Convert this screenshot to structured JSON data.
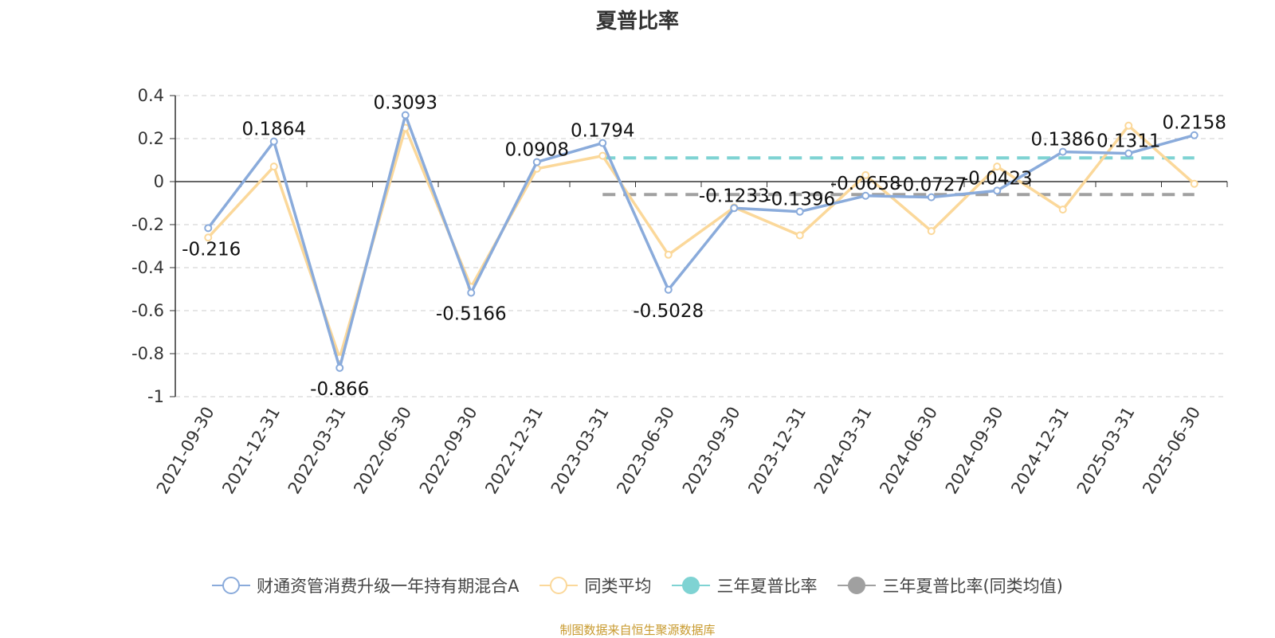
{
  "chart_data": {
    "type": "line",
    "title": "夏普比率",
    "categories": [
      "2021-09-30",
      "2021-12-31",
      "2022-03-31",
      "2022-06-30",
      "2022-09-30",
      "2022-12-31",
      "2023-03-31",
      "2023-06-30",
      "2023-09-30",
      "2023-12-31",
      "2024-03-31",
      "2024-06-30",
      "2024-09-30",
      "2024-12-31",
      "2025-03-31",
      "2025-06-30"
    ],
    "series": [
      {
        "name": "财通资管消费升级一年持有期混合A",
        "color": "#8aabdb",
        "values": [
          -0.216,
          0.1864,
          -0.866,
          0.3093,
          -0.5166,
          0.0908,
          0.1794,
          -0.5028,
          -0.1233,
          -0.1396,
          -0.0658,
          -0.0727,
          -0.0423,
          0.1386,
          0.1311,
          0.2158
        ],
        "labels": [
          "-0.216",
          "0.1864",
          "-0.866",
          "0.3093",
          "-0.5166",
          "0.0908",
          "0.1794",
          "-0.5028",
          "-0.1233",
          "-0.1396",
          "-0.0658",
          "-0.0727",
          "-0.0423",
          "0.1386",
          "0.1311",
          "0.2158"
        ]
      },
      {
        "name": "同类平均",
        "color": "#fbd89a",
        "values": [
          -0.26,
          0.07,
          -0.82,
          0.25,
          -0.49,
          0.06,
          0.12,
          -0.34,
          -0.12,
          -0.25,
          0.03,
          -0.23,
          0.07,
          -0.13,
          0.26,
          -0.01
        ]
      }
    ],
    "reference_lines": [
      {
        "name": "三年夏普比率",
        "color": "#7fd3d3",
        "value": 0.11,
        "from": "2023-03-31",
        "to": "2025-06-30"
      },
      {
        "name": "三年夏普比率(同类均值)",
        "color": "#a0a0a0",
        "value": -0.06,
        "from": "2023-03-31",
        "to": "2025-06-30"
      }
    ],
    "ylim": [
      -1,
      0.4
    ],
    "yticks": [
      "0.4",
      "0.2",
      "0",
      "-0.2",
      "-0.4",
      "-0.6",
      "-0.8",
      "-1"
    ],
    "grid": true,
    "legend_position": "bottom"
  },
  "legend": [
    {
      "label": "财通资管消费升级一年持有期混合A",
      "color": "#8aabdb",
      "kind": "hollow"
    },
    {
      "label": "同类平均",
      "color": "#fbd89a",
      "kind": "hollow"
    },
    {
      "label": "三年夏普比率",
      "color": "#7fd3d3",
      "kind": "filled"
    },
    {
      "label": "三年夏普比率(同类均值)",
      "color": "#a0a0a0",
      "kind": "filled"
    }
  ],
  "source": "制图数据来自恒生聚源数据库"
}
